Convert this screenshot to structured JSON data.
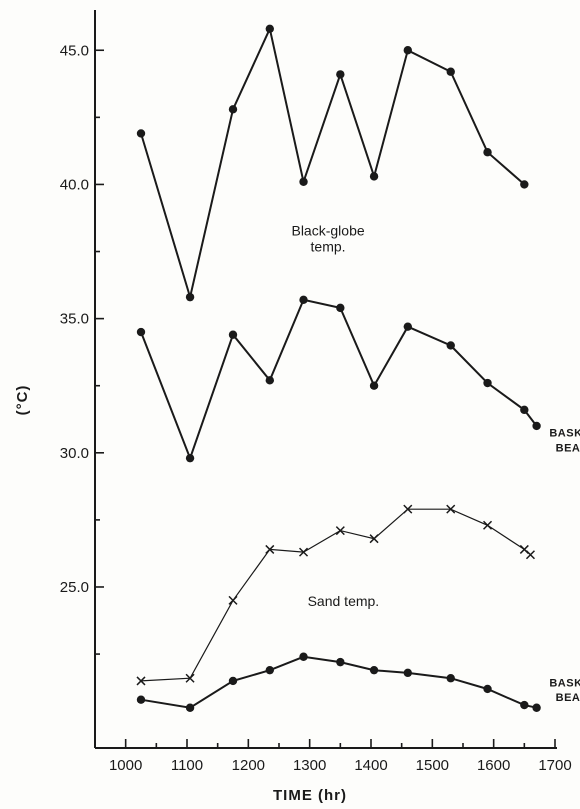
{
  "chart_data": {
    "type": "line",
    "title": "",
    "xlabel": "TIME (hr)",
    "ylabel": "(°C)",
    "xlim": [
      950,
      1700
    ],
    "ylim": [
      19.0,
      46.5
    ],
    "x_ticks": [
      1000,
      1100,
      1200,
      1300,
      1400,
      1500,
      1600,
      1700
    ],
    "x_tick_labels": [
      "1000",
      "1100",
      "1200",
      "1300",
      "1400",
      "1500",
      "1600",
      "1700"
    ],
    "y_ticks": [
      25.0,
      30.0,
      35.0,
      40.0,
      45.0
    ],
    "y_tick_labels": [
      "25.0",
      "30.0",
      "35.0",
      "40.0",
      "45.0"
    ],
    "grid": false,
    "series": [
      {
        "marker": "dot",
        "x": [
          1025,
          1105,
          1175,
          1235,
          1290,
          1350,
          1405,
          1460,
          1530,
          1590,
          1650
        ],
        "y": [
          41.9,
          35.8,
          42.8,
          45.8,
          40.1,
          44.1,
          40.3,
          45.0,
          44.2,
          41.2,
          40.0
        ]
      },
      {
        "marker": "dot",
        "x": [
          1025,
          1105,
          1175,
          1235,
          1290,
          1350,
          1405,
          1460,
          1530,
          1590,
          1650,
          1670
        ],
        "y": [
          34.5,
          29.8,
          34.4,
          32.7,
          35.7,
          35.4,
          32.5,
          34.7,
          34.0,
          32.6,
          31.6,
          31.0
        ]
      },
      {
        "marker": "x",
        "x": [
          1025,
          1105,
          1175,
          1235,
          1290,
          1350,
          1405,
          1460,
          1530,
          1590,
          1650,
          1660
        ],
        "y": [
          21.5,
          21.6,
          24.5,
          26.4,
          26.3,
          27.1,
          26.8,
          27.9,
          27.9,
          27.3,
          26.4,
          26.2
        ]
      },
      {
        "marker": "dot",
        "x": [
          1025,
          1105,
          1175,
          1235,
          1290,
          1350,
          1405,
          1460,
          1530,
          1590,
          1650,
          1670
        ],
        "y": [
          20.8,
          20.5,
          21.5,
          21.9,
          22.4,
          22.2,
          21.9,
          21.8,
          21.6,
          21.2,
          20.6,
          20.5
        ]
      }
    ],
    "annotations": [
      {
        "lines": [
          "Black-globe",
          "temp."
        ],
        "x": 1330,
        "y": 38.1
      },
      {
        "lines": [
          "BASKING",
          "BEACH"
        ],
        "x": 1735,
        "y": 30.6
      },
      {
        "lines": [
          "Sand temp."
        ],
        "x": 1355,
        "y": 24.3
      },
      {
        "lines": [
          "BASKING",
          "BEACH"
        ],
        "x": 1735,
        "y": 21.3
      }
    ]
  }
}
